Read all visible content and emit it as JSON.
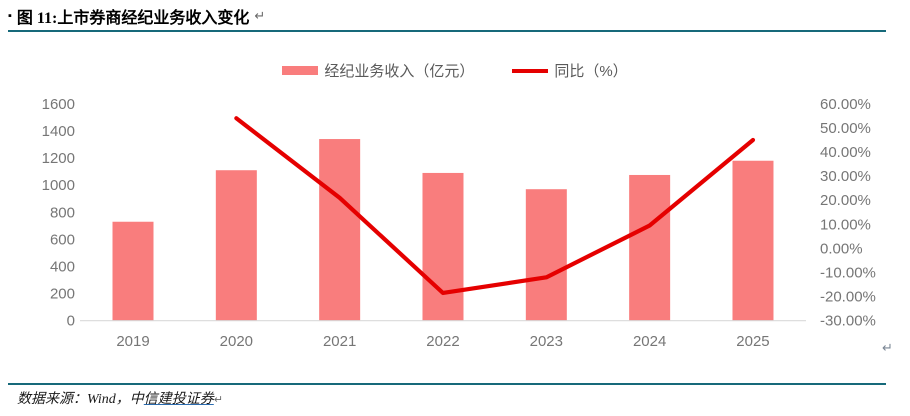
{
  "header": {
    "title": "图 11:上市券商经纪业务收入变化",
    "bullet": "▪",
    "return_mark": "↵"
  },
  "colors": {
    "rule_teal": "#16697A",
    "bar_pink": "#F97D7D",
    "line_red": "#E50000",
    "axis_text_gray": "#767676",
    "axis_line_gray": "#D9D9D9"
  },
  "chart_data": {
    "type": "bar",
    "title": "上市券商经纪业务收入变化",
    "categories": [
      "2019",
      "2020",
      "2021",
      "2022",
      "2023",
      "2024",
      "2025"
    ],
    "series": [
      {
        "name": "经纪业务收入（亿元）",
        "type": "bar",
        "axis": "left",
        "color": "#F97D7D",
        "values": [
          730,
          1110,
          1340,
          1090,
          970,
          1075,
          1180
        ]
      },
      {
        "name": "同比（%）",
        "type": "line",
        "axis": "right",
        "color": "#E50000",
        "values": [
          null,
          54,
          21,
          -18.5,
          -12,
          9.5,
          45
        ]
      }
    ],
    "left_axis": {
      "min": 0,
      "max": 1600,
      "step": 200,
      "ticks": [
        "0",
        "200",
        "400",
        "600",
        "800",
        "1000",
        "1200",
        "1400",
        "1600"
      ]
    },
    "right_axis": {
      "min": -30,
      "max": 60,
      "step": 10,
      "ticks": [
        "60.00%",
        "50.00%",
        "40.00%",
        "30.00%",
        "20.00%",
        "10.00%",
        "0.00%",
        "-10.00%",
        "-20.00%",
        "-30.00%"
      ]
    },
    "legend_position": "top-center",
    "grid": false
  },
  "chart_end_mark": "↵",
  "footer": {
    "prefix": "数据来源：Wind，中",
    "link_text": "信建投证券",
    "return_mark": "↵"
  }
}
